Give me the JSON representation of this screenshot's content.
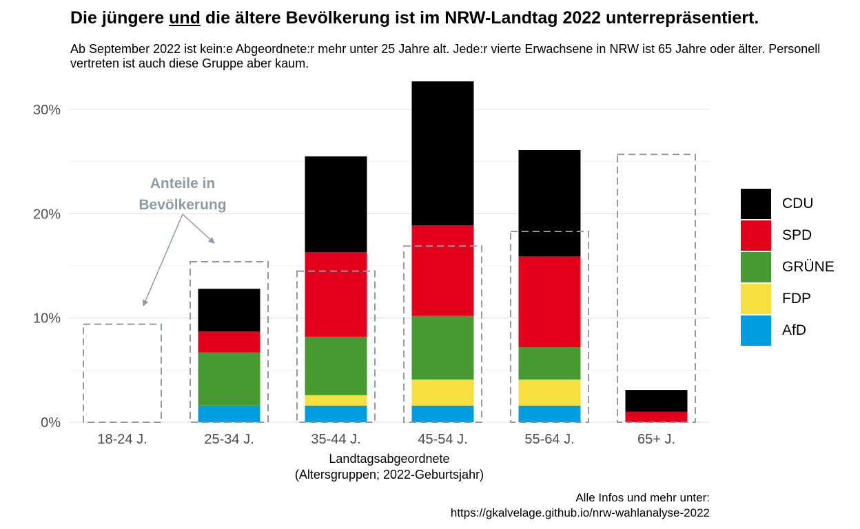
{
  "title": {
    "part1": "Die jüngere ",
    "underlined": "und",
    "part2": " die ältere Bevölkerung ist im NRW-Landtag 2022 unterrepräsentiert."
  },
  "subtitle": "Ab September 2022 ist kein:e Abgeordnete:r mehr unter 25 Jahre alt. Jede:r vierte Erwachsene in NRW ist 65 Jahre oder älter. Personell vertreten ist auch diese Gruppe aber kaum.",
  "caption": {
    "line1": "Alle Infos und mehr unter:",
    "line2": "https://gkalvelage.github.io/nrw-wahlanalyse-2022"
  },
  "chart_data": {
    "type": "bar",
    "stacked": true,
    "categories": [
      "18-24 J.",
      "25-34 J.",
      "35-44 J.",
      "45-54 J.",
      "55-64 J.",
      "65+ J."
    ],
    "series": [
      {
        "name": "AfD",
        "color": "#009EE0",
        "values": [
          0,
          1.6,
          1.6,
          1.6,
          1.6,
          0
        ]
      },
      {
        "name": "FDP",
        "color": "#F5E040",
        "values": [
          0,
          0,
          1.0,
          2.5,
          2.5,
          0
        ]
      },
      {
        "name": "GRÜNE",
        "color": "#479A2F",
        "values": [
          0,
          5.1,
          5.6,
          6.1,
          3.1,
          0
        ]
      },
      {
        "name": "SPD",
        "color": "#E3001B",
        "values": [
          0,
          2.0,
          8.1,
          8.7,
          8.7,
          1.0
        ]
      },
      {
        "name": "CDU",
        "color": "#000000",
        "values": [
          0,
          4.1,
          9.2,
          13.8,
          10.2,
          2.1
        ]
      }
    ],
    "population_share": [
      9.4,
      15.4,
      14.5,
      16.9,
      18.3,
      25.7
    ],
    "population_annotation": {
      "line1": "Anteile in",
      "line2": "Bevölkerung",
      "color": "#8C9BA5"
    },
    "ylim": [
      0,
      32.5
    ],
    "yticks": [
      0,
      10,
      20,
      30
    ],
    "ytick_labels": [
      "0%",
      "10%",
      "20%",
      "30%"
    ],
    "xlabel": {
      "line1": "Landtagsabgeordnete",
      "line2": "(Altersgruppen; 2022-Geburtsjahr)"
    },
    "ylabel": "",
    "legend": {
      "position": "right",
      "order": [
        "CDU",
        "SPD",
        "GRÜNE",
        "FDP",
        "AfD"
      ]
    },
    "grid": true
  }
}
